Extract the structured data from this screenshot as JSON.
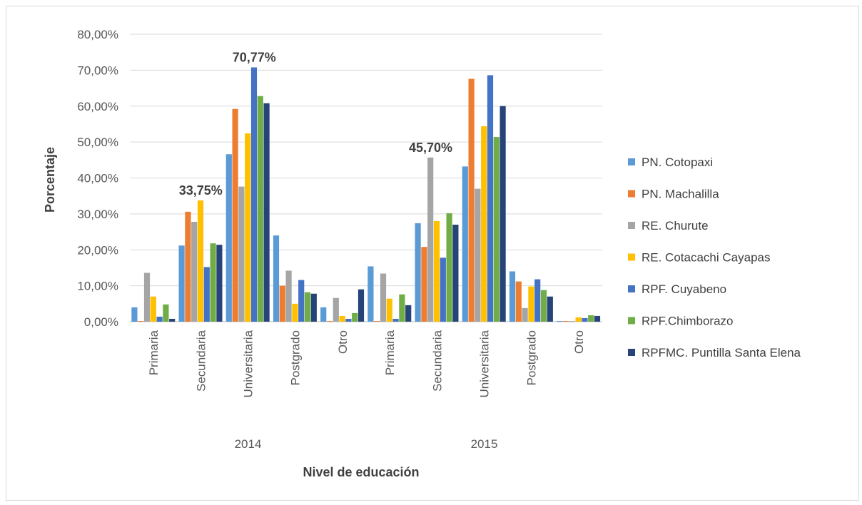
{
  "chart_data": {
    "type": "bar",
    "xlabel": "Nivel de educación",
    "ylabel": "Porcentaje",
    "ylim": [
      0,
      80
    ],
    "yticks": [
      "0,00%",
      "10,00%",
      "20,00%",
      "30,00%",
      "40,00%",
      "50,00%",
      "60,00%",
      "70,00%",
      "80,00%"
    ],
    "grid": true,
    "legend_position": "right",
    "groups": [
      {
        "label": "2014",
        "categories": [
          "Primaria",
          "Secundaria",
          "Universitaria",
          "Postgrado",
          "Otro"
        ]
      },
      {
        "label": "2015",
        "categories": [
          "Primaria",
          "Secundaria",
          "Universitaria",
          "Postgrado",
          "Otro"
        ]
      }
    ],
    "series": [
      {
        "name": "PN. Cotopaxi",
        "color": "#5b9bd5",
        "values": [
          4.0,
          21.2,
          46.6,
          24.0,
          4.0,
          15.4,
          27.4,
          43.2,
          14.0,
          0.2
        ]
      },
      {
        "name": "PN. Machalilla",
        "color": "#ed7d31",
        "values": [
          0.2,
          30.6,
          59.2,
          10.0,
          0.2,
          0.2,
          20.8,
          67.6,
          11.2,
          0.2
        ]
      },
      {
        "name": "RE. Churute",
        "color": "#a5a5a5",
        "values": [
          13.6,
          27.8,
          37.6,
          14.2,
          6.6,
          13.4,
          45.7,
          37.0,
          3.8,
          0.2
        ]
      },
      {
        "name": "RE. Cotacachi Cayapas",
        "color": "#ffc000",
        "values": [
          7.0,
          33.75,
          52.4,
          5.0,
          1.6,
          6.4,
          28.0,
          54.4,
          9.8,
          1.2
        ]
      },
      {
        "name": "RPF. Cuyabeno",
        "color": "#4472c4",
        "values": [
          1.4,
          15.2,
          70.77,
          11.6,
          0.8,
          0.8,
          17.8,
          68.6,
          11.8,
          1.0
        ]
      },
      {
        "name": "RPF.Chimborazo",
        "color": "#70ad47",
        "values": [
          4.8,
          21.8,
          62.8,
          8.2,
          2.4,
          7.6,
          30.2,
          51.4,
          8.8,
          1.8
        ]
      },
      {
        "name": "RPFMC. Puntilla Santa Elena",
        "color": "#264478",
        "values": [
          0.8,
          21.4,
          60.8,
          7.8,
          9.0,
          4.6,
          27.0,
          60.0,
          7.0,
          1.6
        ]
      }
    ],
    "annotations": [
      {
        "text": "33,75%",
        "group": 0,
        "category": 1,
        "series": 3,
        "value": 33.75
      },
      {
        "text": "70,77%",
        "group": 0,
        "category": 2,
        "series": 4,
        "value": 70.77
      },
      {
        "text": "45,70%",
        "group": 1,
        "category": 1,
        "series": 2,
        "value": 45.7
      }
    ]
  }
}
